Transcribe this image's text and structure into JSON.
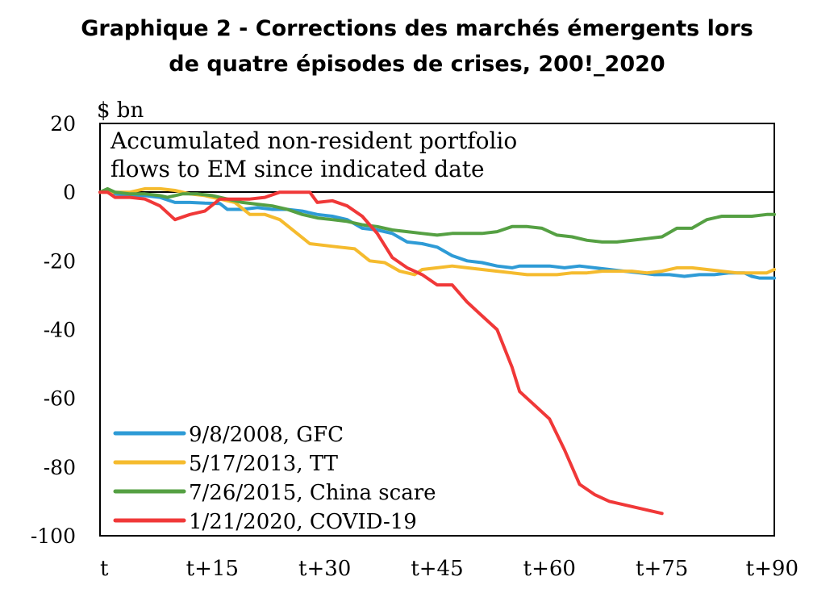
{
  "chart_data": {
    "type": "line",
    "title_line1": "Graphique 2 - Corrections des marchés émergents lors",
    "title_line2": "de quatre épisodes de crises, 200!_2020",
    "unit_label": "$ bn",
    "annotation_line1": "Accumulated non-resident portfolio",
    "annotation_line2": "flows to EM since indicated date",
    "ylim": [
      -100,
      20
    ],
    "xlim": [
      0,
      90
    ],
    "y_ticks": [
      "20",
      "0",
      "-20",
      "-40",
      "-60",
      "-80",
      "-100"
    ],
    "x_ticks": [
      {
        "pos": 0,
        "label": "t"
      },
      {
        "pos": 15,
        "label": "t+15"
      },
      {
        "pos": 30,
        "label": "t+30"
      },
      {
        "pos": 45,
        "label": "t+45"
      },
      {
        "pos": 60,
        "label": "t+60"
      },
      {
        "pos": 75,
        "label": "t+75"
      },
      {
        "pos": 90,
        "label": "t+90"
      }
    ],
    "grid": false,
    "legend_position": "bottom-left",
    "series": [
      {
        "name": "9/8/2008, GFC",
        "color": "#2e9bd6",
        "points": [
          [
            0,
            0
          ],
          [
            1,
            0.5
          ],
          [
            2,
            -0.5
          ],
          [
            4,
            -1
          ],
          [
            6,
            -1
          ],
          [
            8,
            -1.5
          ],
          [
            10,
            -3
          ],
          [
            11,
            -3
          ],
          [
            12,
            -3
          ],
          [
            14,
            -3.2
          ],
          [
            16,
            -3.3
          ],
          [
            17,
            -5
          ],
          [
            19,
            -5
          ],
          [
            21,
            -4.5
          ],
          [
            23,
            -5
          ],
          [
            25,
            -5
          ],
          [
            27,
            -5.5
          ],
          [
            29,
            -6.5
          ],
          [
            31,
            -7
          ],
          [
            33,
            -8
          ],
          [
            35,
            -10.5
          ],
          [
            37,
            -11
          ],
          [
            39,
            -12
          ],
          [
            41,
            -14.5
          ],
          [
            43,
            -15
          ],
          [
            45,
            -16
          ],
          [
            47,
            -18.5
          ],
          [
            49,
            -20
          ],
          [
            51,
            -20.5
          ],
          [
            53,
            -21.5
          ],
          [
            55,
            -22
          ],
          [
            56,
            -21.5
          ],
          [
            58,
            -21.5
          ],
          [
            60,
            -21.5
          ],
          [
            62,
            -22
          ],
          [
            64,
            -21.5
          ],
          [
            66,
            -22
          ],
          [
            68,
            -22.5
          ],
          [
            70,
            -23
          ],
          [
            72,
            -23.5
          ],
          [
            74,
            -24
          ],
          [
            76,
            -24
          ],
          [
            78,
            -24.5
          ],
          [
            80,
            -24
          ],
          [
            82,
            -24
          ],
          [
            84,
            -23.5
          ],
          [
            86,
            -23.5
          ],
          [
            87,
            -24.5
          ],
          [
            88,
            -25
          ],
          [
            90,
            -25
          ]
        ]
      },
      {
        "name": "5/17/2013, TT",
        "color": "#f5bb2e",
        "points": [
          [
            0,
            0
          ],
          [
            1,
            0
          ],
          [
            2,
            0
          ],
          [
            4,
            0
          ],
          [
            6,
            1
          ],
          [
            8,
            1
          ],
          [
            10,
            0.5
          ],
          [
            12,
            -0.5
          ],
          [
            14,
            -1
          ],
          [
            16,
            -2
          ],
          [
            18,
            -3
          ],
          [
            20,
            -6.5
          ],
          [
            22,
            -6.5
          ],
          [
            24,
            -8
          ],
          [
            26,
            -11.5
          ],
          [
            28,
            -15
          ],
          [
            30,
            -15.5
          ],
          [
            32,
            -16
          ],
          [
            34,
            -16.5
          ],
          [
            36,
            -20
          ],
          [
            38,
            -20.5
          ],
          [
            40,
            -23
          ],
          [
            42,
            -24
          ],
          [
            43,
            -22.5
          ],
          [
            45,
            -22
          ],
          [
            47,
            -21.5
          ],
          [
            49,
            -22
          ],
          [
            51,
            -22.5
          ],
          [
            53,
            -23
          ],
          [
            55,
            -23.5
          ],
          [
            57,
            -24
          ],
          [
            59,
            -24
          ],
          [
            61,
            -24
          ],
          [
            63,
            -23.5
          ],
          [
            65,
            -23.5
          ],
          [
            67,
            -23
          ],
          [
            69,
            -23
          ],
          [
            71,
            -23
          ],
          [
            73,
            -23.5
          ],
          [
            75,
            -23
          ],
          [
            77,
            -22
          ],
          [
            79,
            -22
          ],
          [
            81,
            -22.5
          ],
          [
            83,
            -23
          ],
          [
            85,
            -23.5
          ],
          [
            87,
            -23.5
          ],
          [
            89,
            -23.5
          ],
          [
            90,
            -22.5
          ]
        ]
      },
      {
        "name": "7/26/2015, China scare",
        "color": "#55a043",
        "points": [
          [
            0,
            0
          ],
          [
            1,
            1
          ],
          [
            2,
            0
          ],
          [
            4,
            -0.5
          ],
          [
            6,
            -0.5
          ],
          [
            8,
            -1
          ],
          [
            9,
            -1.5
          ],
          [
            11,
            -0.5
          ],
          [
            13,
            -0.5
          ],
          [
            15,
            -1
          ],
          [
            17,
            -2
          ],
          [
            19,
            -3
          ],
          [
            21,
            -3.5
          ],
          [
            23,
            -4
          ],
          [
            25,
            -5
          ],
          [
            27,
            -6.5
          ],
          [
            29,
            -7.5
          ],
          [
            31,
            -8
          ],
          [
            33,
            -8.5
          ],
          [
            35,
            -9.5
          ],
          [
            37,
            -10
          ],
          [
            39,
            -11
          ],
          [
            41,
            -11.5
          ],
          [
            43,
            -12
          ],
          [
            45,
            -12.5
          ],
          [
            47,
            -12
          ],
          [
            49,
            -12
          ],
          [
            51,
            -12
          ],
          [
            53,
            -11.5
          ],
          [
            55,
            -10
          ],
          [
            57,
            -10
          ],
          [
            59,
            -10.5
          ],
          [
            61,
            -12.5
          ],
          [
            63,
            -13
          ],
          [
            65,
            -14
          ],
          [
            67,
            -14.5
          ],
          [
            69,
            -14.5
          ],
          [
            71,
            -14
          ],
          [
            73,
            -13.5
          ],
          [
            75,
            -13
          ],
          [
            77,
            -10.5
          ],
          [
            79,
            -10.5
          ],
          [
            81,
            -8
          ],
          [
            83,
            -7
          ],
          [
            85,
            -7
          ],
          [
            87,
            -7
          ],
          [
            89,
            -6.5
          ],
          [
            90,
            -6.5
          ]
        ]
      },
      {
        "name": "1/21/2020, COVID-19",
        "color": "#f03838",
        "points": [
          [
            0,
            0
          ],
          [
            1,
            0
          ],
          [
            2,
            -1.5
          ],
          [
            4,
            -1.5
          ],
          [
            6,
            -2
          ],
          [
            8,
            -4
          ],
          [
            10,
            -8
          ],
          [
            12,
            -6.5
          ],
          [
            14,
            -5.5
          ],
          [
            16,
            -2
          ],
          [
            18,
            -2
          ],
          [
            20,
            -2
          ],
          [
            22,
            -1.5
          ],
          [
            24,
            0
          ],
          [
            26,
            0
          ],
          [
            28,
            0
          ],
          [
            29,
            -3
          ],
          [
            31,
            -2.5
          ],
          [
            33,
            -4
          ],
          [
            35,
            -7
          ],
          [
            37,
            -12
          ],
          [
            39,
            -19
          ],
          [
            41,
            -22
          ],
          [
            43,
            -24
          ],
          [
            45,
            -27
          ],
          [
            47,
            -27
          ],
          [
            49,
            -32
          ],
          [
            51,
            -36
          ],
          [
            53,
            -40
          ],
          [
            55,
            -51
          ],
          [
            56,
            -58
          ],
          [
            58,
            -62
          ],
          [
            60,
            -66
          ],
          [
            62,
            -75
          ],
          [
            64,
            -85
          ],
          [
            66,
            -88
          ],
          [
            68,
            -90
          ],
          [
            70,
            -91
          ],
          [
            72,
            -92
          ],
          [
            74,
            -93
          ],
          [
            75,
            -93.5
          ]
        ]
      }
    ]
  }
}
